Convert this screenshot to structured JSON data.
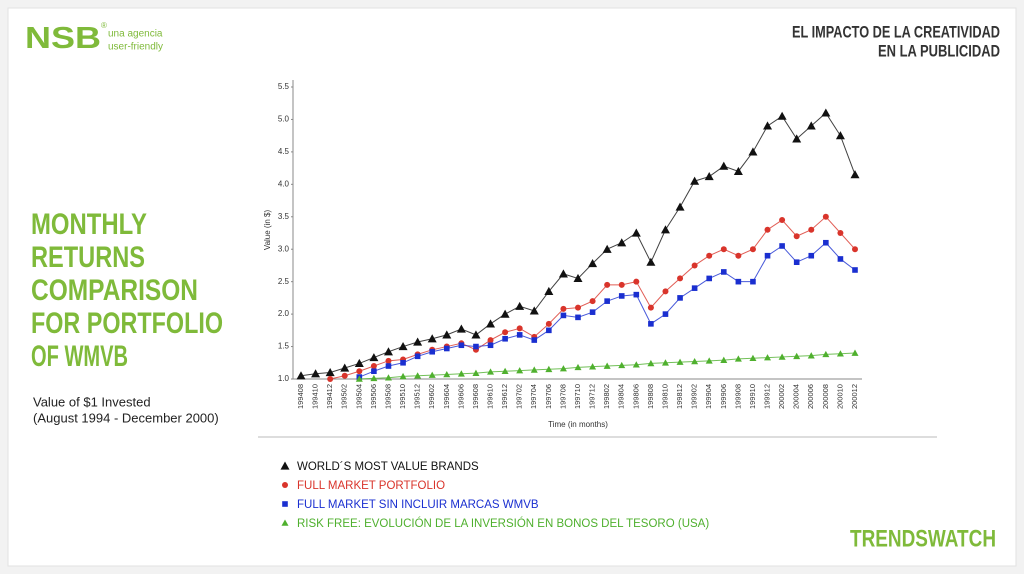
{
  "logo": {
    "name": "NSB",
    "mark": "®",
    "tagline": [
      "una agencia",
      "user-friendly"
    ]
  },
  "header": [
    "EL IMPACTO DE LA CREATIVIDAD",
    "EN LA PUBLICIDAD"
  ],
  "side_title": [
    "MONTHLY",
    "RETURNS",
    "COMPARISON",
    "FOR PORTFOLIO",
    "OF WMVB"
  ],
  "side_subtitle": [
    "Value of $1 Invested",
    "(August 1994 - December 2000)"
  ],
  "footer": "TRENDSWATCH",
  "chart_data": {
    "type": "line",
    "x_label": "Time (in months)",
    "y_label": "Value (in $)",
    "categories": [
      "199408",
      "199410",
      "199412",
      "199502",
      "199504",
      "199506",
      "199508",
      "199510",
      "199512",
      "199602",
      "199604",
      "199606",
      "199608",
      "199610",
      "199612",
      "199702",
      "199704",
      "199706",
      "199708",
      "199710",
      "199712",
      "199802",
      "199804",
      "199806",
      "199808",
      "199810",
      "199812",
      "199902",
      "199904",
      "199906",
      "199908",
      "199910",
      "199912",
      "200002",
      "200004",
      "200006",
      "200008",
      "200010",
      "200012"
    ],
    "ylim": [
      1,
      5.5
    ],
    "yticks": [
      {
        "value": 1,
        "label": "1.0"
      },
      1.5,
      {
        "value": 2,
        "label": "2.0"
      },
      2.5,
      {
        "value": 3,
        "label": "3.0"
      },
      3.5,
      {
        "value": 4,
        "label": "4.0"
      },
      4.5,
      {
        "value": 5,
        "label": "5.0"
      },
      5.5
    ],
    "grid": false,
    "series": [
      {
        "name": "WORLD´S MOST VALUE BRANDS",
        "color": "#111111",
        "marker": "triangle",
        "values": [
          1.05,
          1.08,
          1.1,
          1.17,
          1.24,
          1.33,
          1.42,
          1.5,
          1.57,
          1.62,
          1.68,
          1.77,
          1.68,
          1.85,
          2.0,
          2.12,
          2.05,
          2.35,
          2.62,
          2.55,
          2.78,
          3.0,
          3.1,
          3.25,
          2.8,
          3.3,
          3.65,
          4.05,
          4.12,
          4.28,
          4.2,
          4.5,
          4.9,
          5.05,
          4.7,
          4.9,
          5.1,
          4.75,
          4.15
        ]
      },
      {
        "name": "FULL MARKET PORTFOLIO",
        "color": "#d9342b",
        "marker": "circle",
        "values": [
          null,
          null,
          1.0,
          1.05,
          1.12,
          1.2,
          1.28,
          1.3,
          1.38,
          1.45,
          1.5,
          1.55,
          1.45,
          1.6,
          1.72,
          1.78,
          1.65,
          1.85,
          2.08,
          2.1,
          2.2,
          2.45,
          2.45,
          2.5,
          2.1,
          2.35,
          2.55,
          2.75,
          2.9,
          3.0,
          2.9,
          3.0,
          3.3,
          3.45,
          3.2,
          3.3,
          3.5,
          3.25,
          3.0
        ]
      },
      {
        "name": "FULL MARKET SIN INCLUIR MARCAS WMVB",
        "color": "#1a2fd0",
        "marker": "square",
        "values": [
          null,
          null,
          null,
          null,
          1.03,
          1.12,
          1.2,
          1.25,
          1.35,
          1.42,
          1.47,
          1.52,
          1.5,
          1.52,
          1.62,
          1.68,
          1.6,
          1.75,
          1.98,
          1.95,
          2.03,
          2.2,
          2.28,
          2.3,
          1.85,
          2.0,
          2.25,
          2.4,
          2.55,
          2.65,
          2.5,
          2.5,
          2.9,
          3.05,
          2.8,
          2.9,
          3.1,
          2.85,
          2.68
        ]
      },
      {
        "name": "RISK FREE: EVOLUCIÓN  DE LA INVERSIÓN EN BONOS DEL TESORO (USA)",
        "color": "#4fb02e",
        "marker": "triangle",
        "values": [
          null,
          null,
          null,
          null,
          1.0,
          1.01,
          1.02,
          1.04,
          1.05,
          1.06,
          1.07,
          1.08,
          1.09,
          1.11,
          1.12,
          1.13,
          1.14,
          1.15,
          1.16,
          1.18,
          1.19,
          1.2,
          1.21,
          1.22,
          1.24,
          1.25,
          1.26,
          1.27,
          1.28,
          1.29,
          1.31,
          1.32,
          1.33,
          1.34,
          1.35,
          1.36,
          1.38,
          1.39,
          1.4
        ]
      }
    ]
  }
}
